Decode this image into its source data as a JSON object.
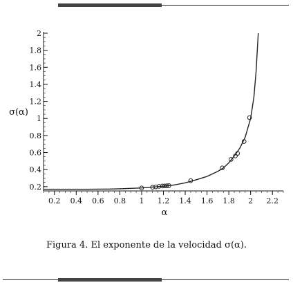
{
  "caption": "Figura 4. El exponente de la velocidad σ(α).",
  "chart_data": {
    "type": "line",
    "xlabel": "α",
    "ylabel": "σ(α)",
    "xlim": [
      0.1,
      2.3
    ],
    "ylim": [
      0.15,
      2.0
    ],
    "xticks": [
      0.2,
      0.4,
      0.6,
      0.8,
      1,
      1.2,
      1.4,
      1.6,
      1.8,
      2,
      2.2
    ],
    "yticks": [
      0.2,
      0.4,
      0.6,
      0.8,
      1,
      1.2,
      1.4,
      1.6,
      1.8,
      2
    ],
    "grid": false,
    "series": [
      {
        "kind": "curve",
        "x": [
          0.1,
          0.2,
          0.3,
          0.4,
          0.5,
          0.6,
          0.7,
          0.8,
          0.9,
          1.0,
          1.1,
          1.2,
          1.3,
          1.4,
          1.5,
          1.6,
          1.7,
          1.75,
          1.8,
          1.85,
          1.9,
          1.95,
          2.0,
          2.03,
          2.05,
          2.07
        ],
        "y": [
          0.17,
          0.17,
          0.17,
          0.17,
          0.17,
          0.171,
          0.172,
          0.175,
          0.18,
          0.185,
          0.195,
          0.205,
          0.22,
          0.245,
          0.28,
          0.32,
          0.38,
          0.42,
          0.48,
          0.56,
          0.65,
          0.78,
          1.0,
          1.25,
          1.55,
          2.0
        ]
      },
      {
        "kind": "points",
        "x": [
          1.0,
          1.1,
          1.13,
          1.16,
          1.19,
          1.21,
          1.23,
          1.25,
          1.45,
          1.74,
          1.82,
          1.86,
          1.88,
          1.94,
          1.99
        ],
        "y": [
          0.185,
          0.193,
          0.197,
          0.203,
          0.207,
          0.208,
          0.21,
          0.212,
          0.27,
          0.42,
          0.52,
          0.56,
          0.59,
          0.73,
          1.01
        ]
      }
    ]
  }
}
